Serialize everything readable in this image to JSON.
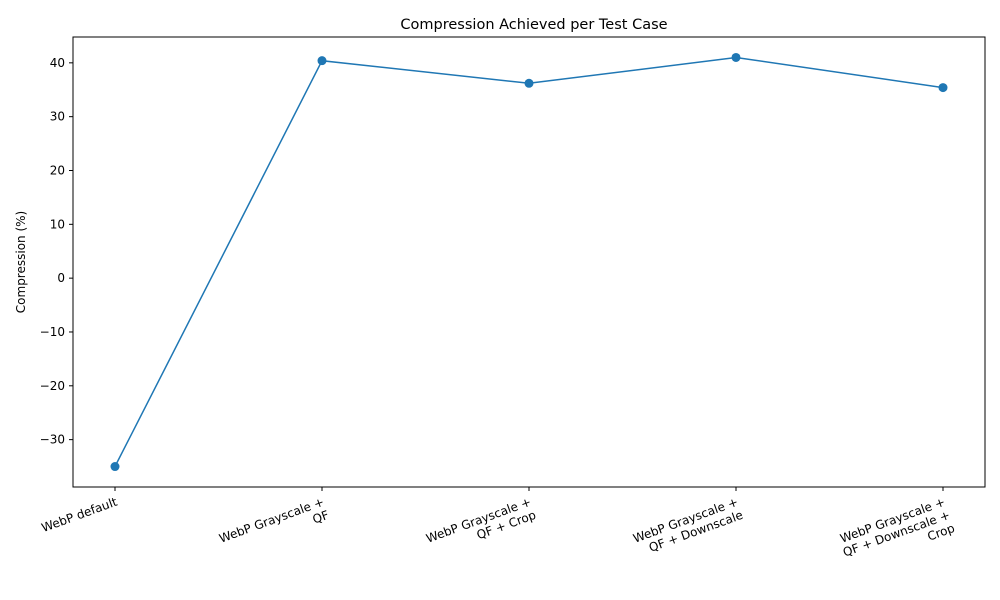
{
  "chart_data": {
    "type": "line",
    "title": "Compression Achieved per Test Case",
    "xlabel": "",
    "ylabel": "Compression (%)",
    "categories": [
      "WebP default",
      "WebP Grayscale +\nQF",
      "WebP Grayscale +\nQF + Crop",
      "WebP Grayscale +\nQF + Downscale",
      "WebP Grayscale +\nQF + Downscale +\nCrop"
    ],
    "series": [
      {
        "values": [
          -35.0,
          40.4,
          36.2,
          41.0,
          35.4
        ],
        "color": "#1f77b4",
        "marker": "circle"
      }
    ],
    "ylim": [
      -38.8,
      44.8
    ],
    "yticks": [
      -30,
      -20,
      -10,
      0,
      10,
      20,
      30,
      40
    ],
    "yticklabels": [
      "−30",
      "−20",
      "−10",
      "0",
      "10",
      "20",
      "30",
      "40"
    ],
    "grid": false,
    "xtick_rotation": 20
  }
}
